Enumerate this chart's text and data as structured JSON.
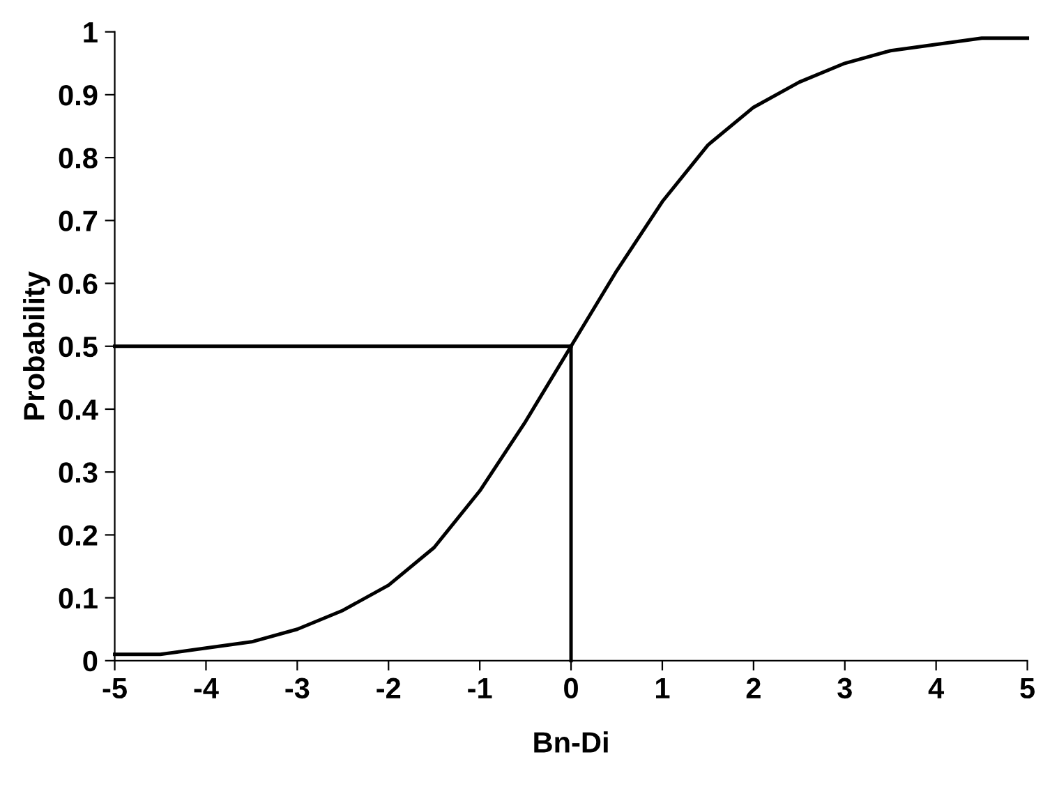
{
  "chart_data": {
    "type": "line",
    "xlabel": "Bn-Di",
    "ylabel": "Probability",
    "xlim": [
      -5,
      5
    ],
    "ylim": [
      0,
      1
    ],
    "xticks": [
      -5,
      -4,
      -3,
      -2,
      -1,
      0,
      1,
      2,
      3,
      4,
      5
    ],
    "yticks": [
      0,
      0.1,
      0.2,
      0.3,
      0.4,
      0.5,
      0.6,
      0.7,
      0.8,
      0.9,
      1
    ],
    "grid": false,
    "marker": "none",
    "line_style": "solid",
    "series": [
      {
        "color": "#000000",
        "x": [
          -5,
          -4.5,
          -4,
          -3.5,
          -3,
          -2.5,
          -2,
          -1.5,
          -1,
          -0.5,
          0,
          0.5,
          1,
          1.5,
          2,
          2.5,
          3,
          3.5,
          4,
          4.5,
          5
        ],
        "values": [
          0.01,
          0.01,
          0.02,
          0.03,
          0.05,
          0.08,
          0.12,
          0.18,
          0.27,
          0.38,
          0.5,
          0.62,
          0.73,
          0.82,
          0.88,
          0.92,
          0.95,
          0.97,
          0.98,
          0.99,
          0.99
        ]
      },
      {
        "color": "#000000",
        "x": [
          -5,
          0
        ],
        "values": [
          0.5,
          0.5
        ]
      },
      {
        "color": "#000000",
        "x": [
          0,
          0
        ],
        "values": [
          0,
          0.5
        ]
      }
    ]
  }
}
